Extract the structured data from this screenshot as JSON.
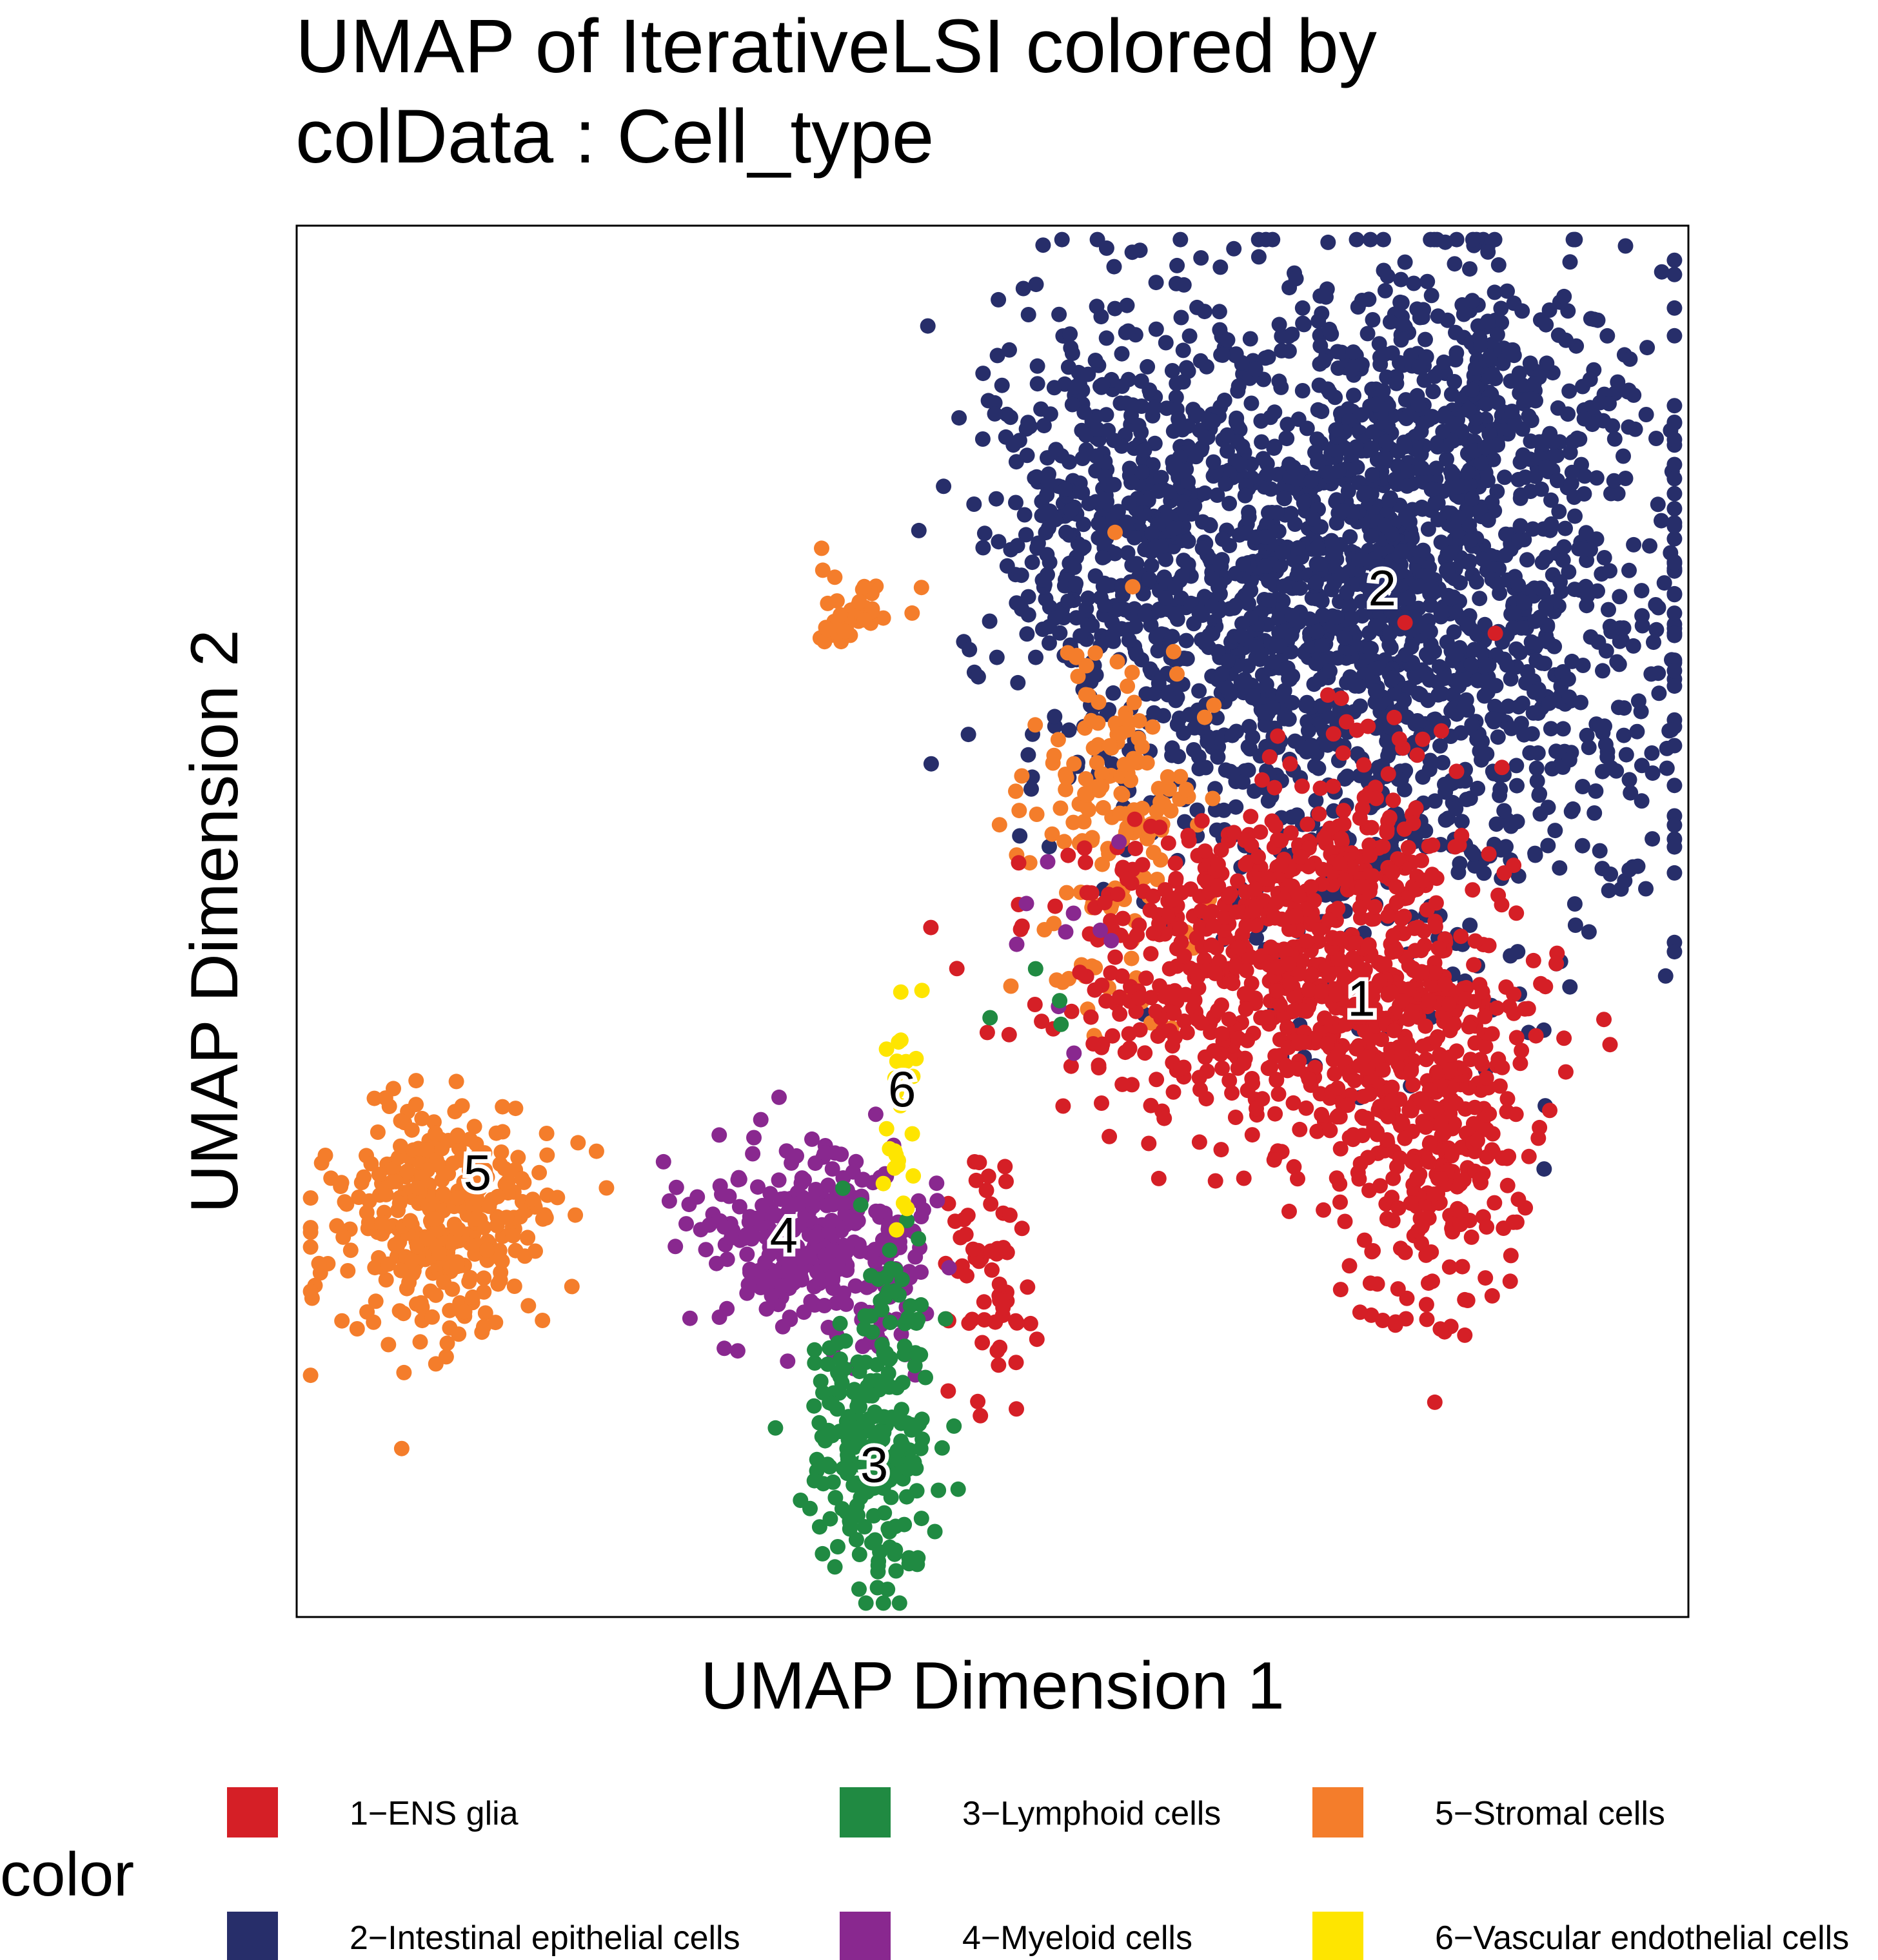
{
  "chart_data": {
    "type": "scatter",
    "title": [
      "UMAP of IterativeLSI  colored by",
      "colData :  Cell_type"
    ],
    "xlabel": "UMAP Dimension 1",
    "ylabel": "UMAP Dimension 2",
    "xlim": [
      0,
      100
    ],
    "ylim": [
      0,
      100
    ],
    "grid": false,
    "legend_title": "color",
    "legend_placement": "bottom",
    "series": [
      {
        "name": "1−ENS glia",
        "label": "1",
        "color": "#D51F26",
        "label_pos": [
          76.5,
          44.5
        ],
        "clusters": [
          [
            71,
            44,
            7,
            5,
            420
          ],
          [
            78,
            45,
            4,
            9,
            300
          ],
          [
            82,
            35,
            3,
            6,
            260
          ],
          [
            68,
            52,
            7,
            3,
            180
          ],
          [
            49.5,
            25,
            1.6,
            5,
            60
          ],
          [
            76,
            55,
            3,
            2,
            40
          ]
        ]
      },
      {
        "name": "2−Intestinal epithelial cells",
        "label": "2",
        "color": "#272E6A",
        "label_pos": [
          78,
          74
        ],
        "clusters": [
          [
            81,
            73,
            10,
            12,
            1500
          ],
          [
            59,
            78,
            5,
            9,
            500
          ],
          [
            70,
            73,
            6,
            8,
            300
          ],
          [
            82,
            87,
            6,
            4,
            200
          ]
        ]
      },
      {
        "name": "3−Lymphoid cells",
        "label": "3",
        "color": "#208A42",
        "label_pos": [
          41.5,
          11
        ],
        "clusters": [
          [
            41.5,
            13,
            2.5,
            5.5,
            220
          ],
          [
            43.5,
            23,
            1.2,
            2,
            15
          ],
          [
            53,
            44,
            3,
            3,
            4
          ]
        ]
      },
      {
        "name": "4−Myeloid cells",
        "label": "4",
        "color": "#89288F",
        "label_pos": [
          35,
          27.5
        ],
        "clusters": [
          [
            35,
            27.5,
            3.5,
            3.5,
            200
          ],
          [
            39.5,
            27,
            2.5,
            3,
            80
          ],
          [
            42,
            25,
            3,
            4,
            40
          ],
          [
            55,
            46,
            4,
            6,
            10
          ]
        ]
      },
      {
        "name": "5−Stromal cells",
        "label": "5",
        "color": "#F47D2B",
        "label_pos": [
          13,
          32
        ],
        "clusters": [
          [
            9.5,
            28,
            3.5,
            4.5,
            280
          ],
          [
            14,
            29,
            3,
            3,
            60
          ],
          [
            59,
            58,
            3,
            6,
            160
          ],
          [
            40.5,
            72.5,
            1.5,
            1.5,
            40
          ],
          [
            56,
            46,
            3,
            3,
            12
          ]
        ]
      },
      {
        "name": "6−Vascular endothelial cells",
        "label": "6",
        "color": "#FEE500",
        "label_pos": [
          43.5,
          38
        ],
        "clusters": [
          [
            43.5,
            36,
            0.8,
            4,
            25
          ]
        ]
      }
    ]
  }
}
